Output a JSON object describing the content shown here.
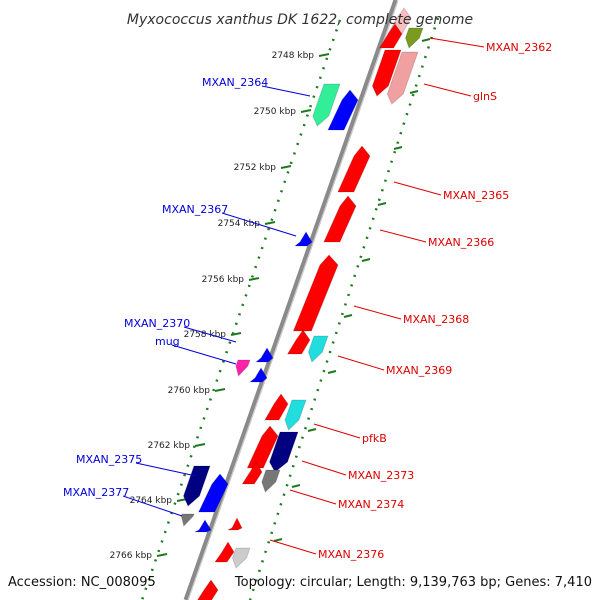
{
  "title": "Myxococcus xanthus DK 1622, complete genome",
  "footer": {
    "accession": "Accession: NC_008095",
    "summary": "Topology: circular; Length: 9,139,763 bp; Genes: 7,410"
  },
  "colors": {
    "backbone": "#8a8a8a",
    "tick": "#1e7a1e",
    "forward_label": "#0000dd",
    "reverse_label": "#dd0000"
  },
  "ticks": [
    "2748 kbp",
    "2750 kbp",
    "2752 kbp",
    "2754 kbp",
    "2756 kbp",
    "2758 kbp",
    "2760 kbp",
    "2762 kbp",
    "2764 kbp",
    "2766 kbp"
  ],
  "labels_forward": [
    "MXAN_2364",
    "MXAN_2367",
    "MXAN_2370",
    "mug",
    "MXAN_2375",
    "MXAN_2377"
  ],
  "labels_reverse": [
    "MXAN_2362",
    "glnS",
    "MXAN_2365",
    "MXAN_2366",
    "MXAN_2368",
    "MXAN_2369",
    "pfkB",
    "MXAN_2373",
    "MXAN_2374",
    "MXAN_2376"
  ]
}
